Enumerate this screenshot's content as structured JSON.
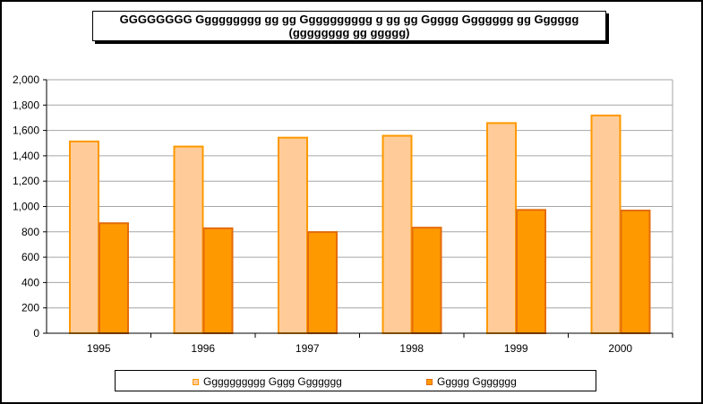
{
  "chart_data": {
    "type": "bar",
    "title": "GGGGGGGG Ggggggggg gg gg Gggggggggg g gg gg Ggggg Ggggggg gg Gggggg",
    "subtitle": "(gggggggg gg ggggg)",
    "xlabel": "",
    "ylabel": "",
    "categories": [
      "1995",
      "1996",
      "1997",
      "1998",
      "1999",
      "2000"
    ],
    "ylim": [
      0,
      2000
    ],
    "y_ticks": [
      "0",
      "200",
      "400",
      "600",
      "800",
      "1,000",
      "1,200",
      "1,400",
      "1,600",
      "1,800",
      "2,000"
    ],
    "grid": true,
    "legend_position": "bottom",
    "series": [
      {
        "name": "Gggggggggg Gggg Ggggggg",
        "values": [
          1520,
          1480,
          1550,
          1565,
          1665,
          1725
        ],
        "fill": "#ffcc99",
        "stroke": "#ff9900"
      },
      {
        "name": "Ggggg Ggggggg",
        "values": [
          875,
          835,
          805,
          840,
          980,
          975
        ],
        "fill": "#ff9900",
        "stroke": "#e46c0a"
      }
    ]
  }
}
